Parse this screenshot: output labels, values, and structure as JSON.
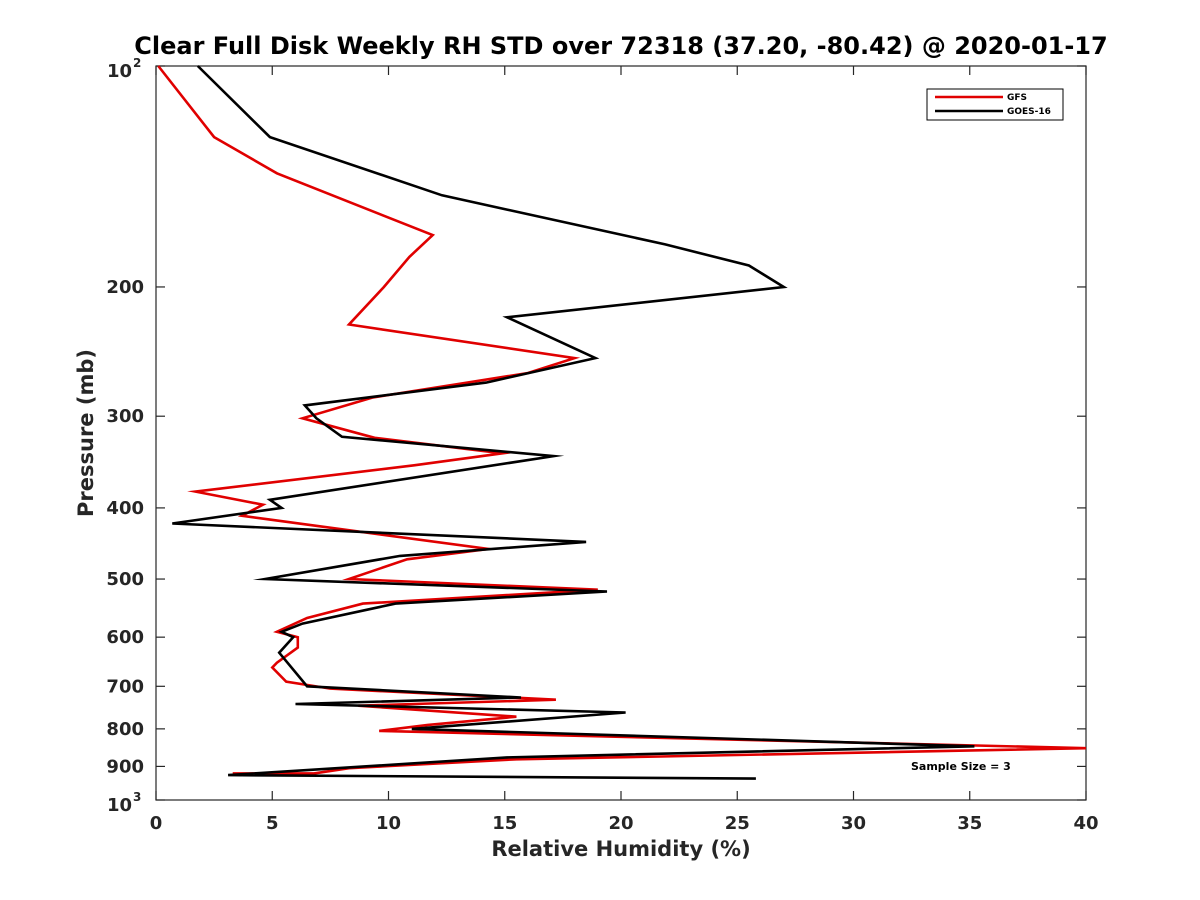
{
  "chart_data": {
    "type": "line",
    "title": "Clear Full Disk Weekly RH STD over 72318 (37.20, -80.42) @ 2020-01-17",
    "xlabel": "Relative Humidity (%)",
    "ylabel": "Pressure (mb)",
    "xlim": [
      0,
      40
    ],
    "ylim": [
      100,
      1000
    ],
    "y_scale": "log",
    "y_reversed": true,
    "grid": false,
    "legend_position": "top-right",
    "x_ticks": [
      "0",
      "5",
      "10",
      "15",
      "20",
      "25",
      "30",
      "35",
      "40"
    ],
    "y_ticks": [
      {
        "value": 100,
        "base": "10",
        "exp": "2"
      },
      {
        "value": 200,
        "label": "200"
      },
      {
        "value": 300,
        "label": "300"
      },
      {
        "value": 400,
        "label": "400"
      },
      {
        "value": 500,
        "label": "500"
      },
      {
        "value": 600,
        "label": "600"
      },
      {
        "value": 700,
        "label": "700"
      },
      {
        "value": 800,
        "label": "800"
      },
      {
        "value": 900,
        "label": "900"
      },
      {
        "value": 1000,
        "base": "10",
        "exp": "3"
      }
    ],
    "annotation": "Sample Size = 3",
    "series": [
      {
        "name": "GFS",
        "color": "#e00000",
        "points": [
          [
            0.1,
            100
          ],
          [
            2.5,
            125
          ],
          [
            5.2,
            140
          ],
          [
            11.9,
            170
          ],
          [
            10.9,
            182
          ],
          [
            9.8,
            200
          ],
          [
            8.3,
            225
          ],
          [
            18.0,
            250
          ],
          [
            16.0,
            262
          ],
          [
            9.3,
            283
          ],
          [
            6.3,
            302
          ],
          [
            9.4,
            321
          ],
          [
            14.9,
            337
          ],
          [
            11.1,
            350
          ],
          [
            1.7,
            380
          ],
          [
            4.6,
            396
          ],
          [
            3.7,
            410
          ],
          [
            4.9,
            415
          ],
          [
            14.3,
            455
          ],
          [
            10.8,
            470
          ],
          [
            8.3,
            500
          ],
          [
            19.0,
            517
          ],
          [
            8.9,
            540
          ],
          [
            6.5,
            565
          ],
          [
            5.2,
            590
          ],
          [
            6.1,
            600
          ],
          [
            6.1,
            620
          ],
          [
            5.2,
            650
          ],
          [
            5.0,
            660
          ],
          [
            5.6,
            690
          ],
          [
            7.5,
            705
          ],
          [
            17.2,
            730
          ],
          [
            8.7,
            744
          ],
          [
            15.5,
            770
          ],
          [
            11.7,
            790
          ],
          [
            9.6,
            805
          ],
          [
            40.0,
            850
          ],
          [
            15.5,
            880
          ],
          [
            8.3,
            905
          ],
          [
            6.8,
            920
          ],
          [
            3.3,
            920
          ]
        ]
      },
      {
        "name": "GOES-16",
        "color": "#000000",
        "points": [
          [
            1.8,
            100
          ],
          [
            4.9,
            125
          ],
          [
            12.3,
            150
          ],
          [
            21.9,
            175
          ],
          [
            25.5,
            187
          ],
          [
            27.0,
            200
          ],
          [
            15.1,
            220
          ],
          [
            18.9,
            250
          ],
          [
            14.2,
            270
          ],
          [
            6.4,
            290
          ],
          [
            6.9,
            302
          ],
          [
            8.0,
            320
          ],
          [
            17.1,
            340
          ],
          [
            4.9,
            390
          ],
          [
            5.4,
            400
          ],
          [
            0.7,
            420
          ],
          [
            18.5,
            445
          ],
          [
            10.5,
            465
          ],
          [
            4.7,
            500
          ],
          [
            19.4,
            520
          ],
          [
            10.3,
            540
          ],
          [
            6.3,
            575
          ],
          [
            5.4,
            590
          ],
          [
            5.9,
            600
          ],
          [
            5.3,
            630
          ],
          [
            6.5,
            700
          ],
          [
            15.7,
            725
          ],
          [
            6.0,
            740
          ],
          [
            20.2,
            760
          ],
          [
            11.0,
            800
          ],
          [
            35.2,
            845
          ],
          [
            15.1,
            875
          ],
          [
            3.1,
            925
          ],
          [
            25.8,
            935
          ]
        ]
      }
    ]
  }
}
